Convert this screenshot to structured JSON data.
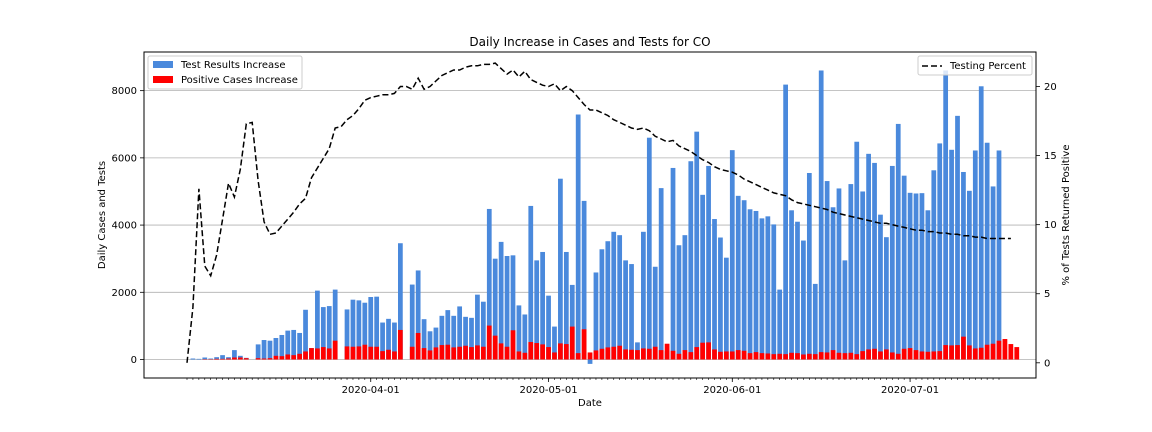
{
  "chart_data": {
    "type": "bar",
    "title": "Daily Increase in Cases and Tests for CO",
    "xlabel": "Date",
    "ylabel": "Daily Cases and Tests",
    "y2label": "% of Tests Returned Positive",
    "ylim": [
      -550,
      9150
    ],
    "y2lim": [
      -1.1,
      22.5
    ],
    "yticks": [
      0,
      2000,
      4000,
      6000,
      8000
    ],
    "y2ticks": [
      0,
      5,
      10,
      15,
      20
    ],
    "x_start_date": "2020-03-01",
    "xticks": [
      {
        "label": "2020-04-01",
        "day": 31
      },
      {
        "label": "2020-05-01",
        "day": 61
      },
      {
        "label": "2020-06-01",
        "day": 92
      },
      {
        "label": "2020-07-01",
        "day": 122
      }
    ],
    "grid": true,
    "legend_left_placement": "upper-left",
    "legend_right_placement": "upper-right",
    "colors": {
      "tests": "#4a89dc",
      "positive": "#ff0000",
      "percent": "#000000"
    },
    "series": [
      {
        "name": "Test Results Increase",
        "kind": "bar",
        "values": [
          0,
          30,
          20,
          60,
          30,
          70,
          130,
          70,
          280,
          110,
          50,
          0,
          450,
          580,
          560,
          640,
          730,
          860,
          880,
          790,
          1480,
          340,
          2050,
          1560,
          1590,
          2080,
          0,
          1490,
          1780,
          1760,
          1690,
          1860,
          1870,
          1100,
          1210,
          1100,
          3460,
          0,
          2230,
          2650,
          1200,
          840,
          950,
          1300,
          1470,
          1300,
          1580,
          1270,
          1240,
          1930,
          1720,
          4480,
          3000,
          3500,
          3080,
          3100,
          1610,
          1340,
          4570,
          2950,
          3200,
          1900,
          980,
          5380,
          3200,
          2220,
          7290,
          4720,
          -130,
          2590,
          3280,
          3520,
          3800,
          3700,
          2950,
          2840,
          510,
          3800,
          6600,
          2760,
          5100,
          250,
          5700,
          3400,
          3700,
          5900,
          6780,
          4900,
          5760,
          4180,
          3630,
          3030,
          6230,
          4870,
          4740,
          4470,
          4420,
          4200,
          4260,
          4020,
          2080,
          8180,
          4440,
          4100,
          3540,
          5550,
          2250,
          8600,
          5310,
          4530,
          5090,
          2950,
          5220,
          6480,
          5000,
          6120,
          5850,
          4310,
          3640,
          5760,
          7010,
          5470,
          4960,
          4940,
          4950,
          4440,
          5630,
          6430,
          8600,
          6240,
          7250,
          5580,
          5020,
          6220,
          8130,
          6450,
          5150,
          6220
        ]
      },
      {
        "name": "Positive Cases Increase",
        "kind": "bar",
        "values": [
          0,
          0,
          0,
          10,
          10,
          20,
          20,
          30,
          60,
          60,
          40,
          0,
          40,
          30,
          40,
          110,
          100,
          150,
          130,
          170,
          240,
          340,
          330,
          370,
          330,
          560,
          0,
          390,
          380,
          390,
          440,
          380,
          380,
          250,
          290,
          240,
          880,
          0,
          380,
          790,
          340,
          270,
          360,
          430,
          440,
          360,
          380,
          410,
          370,
          420,
          380,
          1010,
          710,
          480,
          380,
          870,
          240,
          200,
          520,
          490,
          450,
          370,
          210,
          480,
          460,
          980,
          190,
          900,
          210,
          270,
          320,
          360,
          380,
          410,
          300,
          290,
          280,
          330,
          320,
          380,
          280,
          470,
          260,
          170,
          280,
          220,
          370,
          500,
          510,
          300,
          230,
          240,
          240,
          280,
          260,
          190,
          220,
          190,
          180,
          160,
          170,
          160,
          200,
          190,
          150,
          170,
          160,
          220,
          210,
          280,
          200,
          190,
          200,
          160,
          250,
          300,
          320,
          240,
          300,
          210,
          170,
          320,
          340,
          280,
          240,
          230,
          240,
          250,
          430,
          420,
          430,
          680,
          420,
          330,
          350,
          440,
          470,
          560,
          610,
          460,
          370
        ]
      },
      {
        "name": "Testing Percent",
        "kind": "line",
        "axis": "right",
        "values": [
          0,
          4.0,
          12.6,
          7.0,
          6.3,
          7.8,
          10.4,
          13.0,
          12.0,
          14.0,
          17.3,
          17.4,
          13.2,
          10.2,
          9.3,
          9.4,
          9.9,
          10.4,
          10.9,
          11.5,
          11.9,
          13.4,
          14.1,
          14.8,
          15.5,
          17.0,
          17.1,
          17.6,
          17.9,
          18.4,
          19.0,
          19.2,
          19.3,
          19.4,
          19.4,
          19.5,
          20.0,
          20.0,
          19.8,
          20.6,
          19.8,
          20.0,
          20.4,
          20.8,
          21.0,
          21.2,
          21.2,
          21.4,
          21.5,
          21.5,
          21.6,
          21.6,
          21.7,
          21.3,
          20.9,
          21.2,
          20.7,
          21.1,
          20.5,
          20.3,
          20.1,
          20.0,
          20.2,
          19.7,
          20.0,
          19.7,
          19.2,
          18.7,
          18.3,
          18.3,
          18.1,
          17.9,
          17.6,
          17.4,
          17.2,
          17.0,
          16.9,
          17.0,
          16.8,
          16.4,
          16.2,
          16.0,
          16.1,
          15.7,
          15.5,
          15.3,
          15.0,
          14.7,
          14.5,
          14.2,
          14.0,
          13.9,
          13.8,
          13.6,
          13.3,
          13.1,
          12.9,
          12.7,
          12.5,
          12.3,
          12.2,
          12.1,
          11.8,
          11.6,
          11.5,
          11.4,
          11.3,
          11.2,
          11.1,
          10.9,
          10.8,
          10.7,
          10.6,
          10.5,
          10.4,
          10.3,
          10.2,
          10.1,
          10.1,
          10.0,
          9.9,
          9.8,
          9.7,
          9.6,
          9.6,
          9.5,
          9.5,
          9.4,
          9.4,
          9.3,
          9.3,
          9.2,
          9.2,
          9.1,
          9.1,
          9.0,
          9.0,
          9.0,
          9.0,
          9.0
        ]
      }
    ]
  }
}
